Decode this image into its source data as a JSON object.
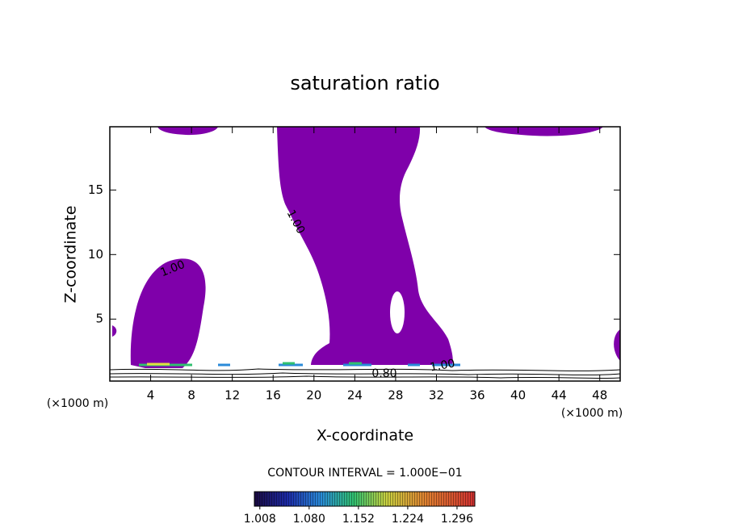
{
  "chart_data": {
    "type": "contour",
    "title": "saturation ratio",
    "xlabel": "X-coordinate",
    "ylabel": "Z-coordinate",
    "unit_labels": [
      "(×1000 m)",
      "(×1000 m)"
    ],
    "xlim": [
      0,
      50
    ],
    "ylim": [
      0.2,
      19.9
    ],
    "xticks": [
      4,
      8,
      12,
      16,
      20,
      24,
      28,
      32,
      36,
      40,
      44,
      48
    ],
    "yticks": [
      5,
      10,
      15
    ],
    "contour_labels": [
      "1.00",
      "1.00",
      "1.00",
      "0.80"
    ],
    "fill_color": "#7f00aa",
    "annotation": "CONTOUR INTERVAL = 1.000E−01",
    "colorbar_lim": [
      1.0,
      1.322
    ],
    "colorbar_ticks": [
      1.008,
      {
        "value": 1.08,
        "label": "1.080"
      },
      1.152,
      1.224,
      1.296
    ]
  }
}
